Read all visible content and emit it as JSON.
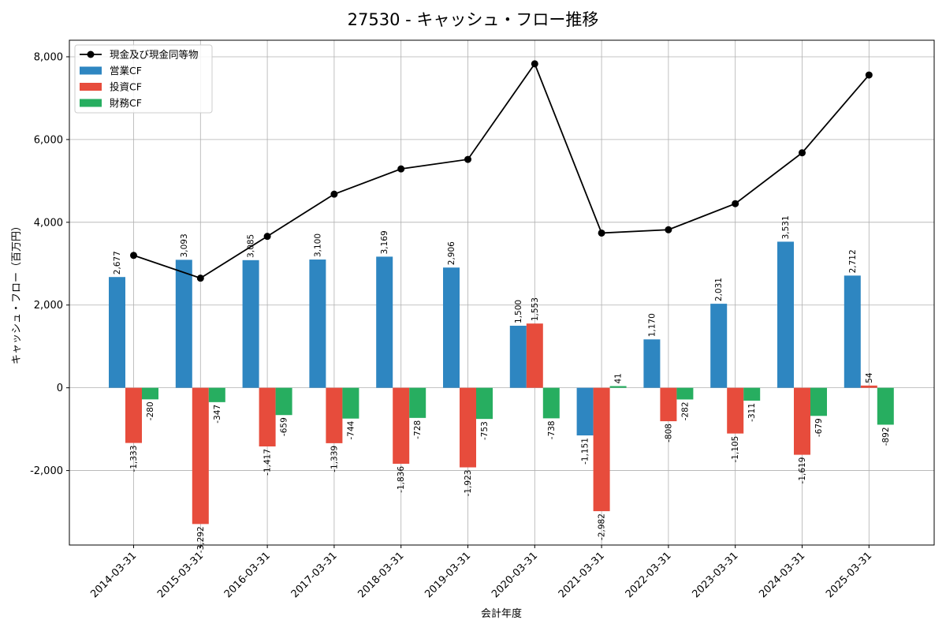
{
  "chart_data": {
    "type": "bar",
    "title": "27530 - キャッシュ・フロー推移",
    "xlabel": "会計年度",
    "ylabel": "キャッシュ・フロー（百万円）",
    "ylim": [
      -3800,
      8400
    ],
    "yticks": [
      -2000,
      0,
      2000,
      4000,
      6000,
      8000
    ],
    "ytick_labels": [
      "-2,000",
      "0",
      "2,000",
      "4,000",
      "6,000",
      "8,000"
    ],
    "grid": true,
    "legend_position": "top-left",
    "categories": [
      "2014-03-31",
      "2015-03-31",
      "2016-03-31",
      "2017-03-31",
      "2018-03-31",
      "2019-03-31",
      "2020-03-31",
      "2021-03-31",
      "2022-03-31",
      "2023-03-31",
      "2024-03-31",
      "2025-03-31"
    ],
    "series": [
      {
        "name": "営業CF",
        "kind": "bar",
        "color": "#2e86c1",
        "values": [
          2677,
          3093,
          3085,
          3100,
          3169,
          2906,
          1500,
          -1151,
          1170,
          2031,
          3531,
          2712
        ],
        "labels": [
          "2,677",
          "3,093",
          "3,085",
          "3,100",
          "3,169",
          "2,906",
          "1,500",
          "-1,151",
          "1,170",
          "2,031",
          "3,531",
          "2,712"
        ]
      },
      {
        "name": "投資CF",
        "kind": "bar",
        "color": "#e74c3c",
        "values": [
          -1333,
          -3292,
          -1417,
          -1339,
          -1836,
          -1923,
          1553,
          -2982,
          -808,
          -1105,
          -1619,
          54
        ],
        "labels": [
          "-1,333",
          "-3,292",
          "-1,417",
          "-1,339",
          "-1,836",
          "-1,923",
          "1,553",
          "-2,982",
          "-808",
          "-1,105",
          "-1,619",
          "54"
        ]
      },
      {
        "name": "財務CF",
        "kind": "bar",
        "color": "#27ae60",
        "values": [
          -280,
          -347,
          -659,
          -744,
          -728,
          -753,
          -738,
          41,
          -282,
          -311,
          -679,
          -892
        ],
        "labels": [
          "-280",
          "-347",
          "-659",
          "-744",
          "-728",
          "-753",
          "-738",
          "41",
          "-282",
          "-311",
          "-679",
          "-892"
        ]
      },
      {
        "name": "現金及び現金同等物",
        "kind": "line",
        "color": "#000000",
        "values": [
          3200,
          2650,
          3660,
          4680,
          5290,
          5520,
          7830,
          3740,
          3820,
          4450,
          5680,
          7560
        ]
      }
    ]
  }
}
